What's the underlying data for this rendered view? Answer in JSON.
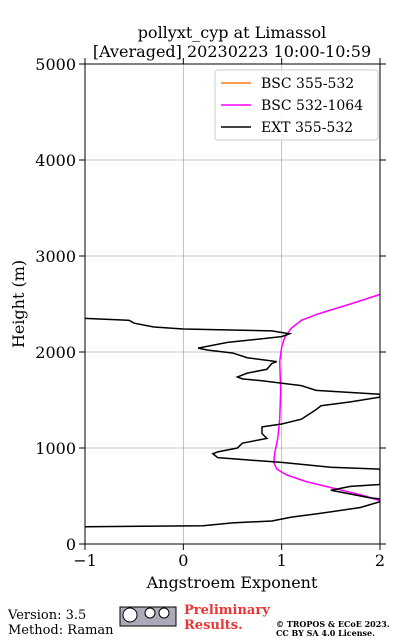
{
  "chart_data": {
    "type": "profile",
    "title": "pollyxt_cyp at Limassol",
    "subtitle": "[Averaged] 20230223 10:00-10:59",
    "x_label": "Angstroem Exponent",
    "y_label": "Height (m)",
    "xlim": [
      -1,
      2
    ],
    "xticks": [
      {
        "value": -1,
        "label": "−1"
      },
      0,
      1,
      2
    ],
    "ylim": [
      0,
      5000
    ],
    "yticks": [
      0,
      1000,
      2000,
      3000,
      4000,
      5000
    ],
    "grid": true,
    "legend": "upper right",
    "series": [
      {
        "name": "BSC 355-532",
        "color": "#ff7f0e",
        "y": [],
        "values": []
      },
      {
        "name": "BSC 532-1064",
        "color": "#ff00ff",
        "y": [
          2600,
          2500,
          2400,
          2330,
          2250,
          2150,
          2050,
          1900,
          1600,
          1300,
          1100,
          950,
          850,
          780,
          720,
          650,
          600,
          550,
          500,
          450
        ],
        "values": [
          2.0,
          1.7,
          1.38,
          1.2,
          1.1,
          1.03,
          1.0,
          0.98,
          0.99,
          0.98,
          0.96,
          0.93,
          0.92,
          0.95,
          1.05,
          1.25,
          1.45,
          1.65,
          1.85,
          2.0
        ]
      },
      {
        "name": "EXT 355-532",
        "color": "#000000",
        "y": [
          2350,
          2330,
          2300,
          2260,
          2240,
          2220,
          2190,
          2160,
          2100,
          2040,
          2020,
          1990,
          1940,
          1900,
          1880,
          1820,
          1780,
          1740,
          1720,
          1700,
          1650,
          1600,
          1560,
          1530,
          1480,
          1440,
          1400,
          1300,
          1250,
          1220,
          1150,
          1100,
          1050,
          1000,
          960,
          940,
          900,
          880,
          850,
          800,
          780,
          620,
          600,
          560,
          540,
          480,
          470,
          440,
          380,
          320,
          280,
          240,
          220,
          190,
          180
        ],
        "values": [
          -1.0,
          -0.55,
          -0.5,
          -0.3,
          0.0,
          0.9,
          1.08,
          1.0,
          0.45,
          0.15,
          0.25,
          0.5,
          0.65,
          0.95,
          0.9,
          0.85,
          0.65,
          0.55,
          0.6,
          0.8,
          1.2,
          1.35,
          2.0,
          2.0,
          1.7,
          1.4,
          1.35,
          1.2,
          1.0,
          0.8,
          0.8,
          0.85,
          0.6,
          0.55,
          0.35,
          0.3,
          0.35,
          0.6,
          1.0,
          1.5,
          2.0,
          2.0,
          1.7,
          1.5,
          1.6,
          1.9,
          2.0,
          2.0,
          1.8,
          1.4,
          1.1,
          0.9,
          0.5,
          0.2,
          -1.0
        ]
      }
    ]
  },
  "footer": {
    "version": "Version: 3.5",
    "method": "Method: Raman",
    "notice": "Preliminary Results.",
    "copyright": "© TROPOS & ECoE 2023.",
    "license": "CC BY SA 4.0 License."
  }
}
